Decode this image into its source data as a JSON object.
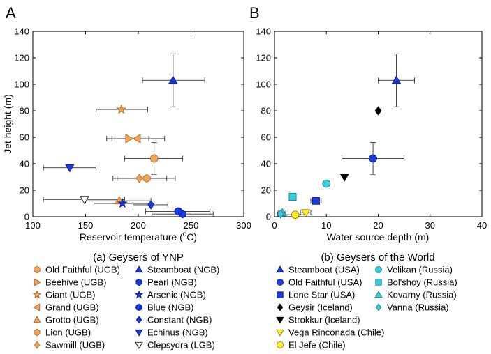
{
  "colors": {
    "ugb": "#f2a55a",
    "ugb_stroke": "#a86420",
    "ngb": "#1a3ae0",
    "ngb_stroke": "#0a1a80",
    "lgb": "#ffffff",
    "iceland": "#000000",
    "chile": "#ffee22",
    "chile_stroke": "#8a7a00",
    "russia": "#33cfe0",
    "russia_stroke": "#1a7a88"
  },
  "chart_data": [
    {
      "type": "scatter",
      "panel": "A",
      "caption": "(a) Geysers of YNP",
      "xlabel": "Reservoir temperature (",
      "xlabel_sup": "o",
      "xlabel_end": "C)",
      "ylabel": "Jet height (m)",
      "xlim": [
        100,
        300
      ],
      "ylim": [
        0,
        140
      ],
      "xticks": [
        "100",
        "150",
        "200",
        "250",
        "300"
      ],
      "yticks": [
        "0",
        "20",
        "40",
        "60",
        "80",
        "100",
        "120",
        "140"
      ],
      "xtick_values": [
        100,
        150,
        200,
        250,
        300
      ],
      "ytick_values": [
        0,
        20,
        40,
        60,
        80,
        100,
        120,
        140
      ],
      "points": [
        {
          "name": "Old Faithful (UGB)",
          "x": 215,
          "y": 44,
          "marker": "circle",
          "group": "ugb",
          "xerr": [
            187,
            242
          ],
          "yerr": [
            32,
            56
          ]
        },
        {
          "name": "Beehive (UGB)",
          "x": 191,
          "y": 59,
          "marker": "triangle-right",
          "group": "ugb",
          "xerr": [
            170,
            210
          ],
          "yerr": null
        },
        {
          "name": "Giant (UGB)",
          "x": 184,
          "y": 81,
          "marker": "star",
          "group": "ugb",
          "xerr": [
            160,
            209
          ],
          "yerr": null
        },
        {
          "name": "Grand (UGB)",
          "x": 199,
          "y": 59,
          "marker": "triangle-left",
          "group": "ugb",
          "xerr": [
            175,
            225
          ],
          "yerr": null
        },
        {
          "name": "Grotto (UGB)",
          "x": 182,
          "y": 12,
          "marker": "triangle-up",
          "group": "ugb",
          "xerr": [
            150,
            212
          ],
          "yerr": null
        },
        {
          "name": "Lion (UGB)",
          "x": 208,
          "y": 29,
          "marker": "hexagon",
          "group": "ugb",
          "xerr": [
            180,
            235
          ],
          "yerr": null
        },
        {
          "name": "Sawmill (UGB)",
          "x": 201,
          "y": 29,
          "marker": "diamond",
          "group": "ugb",
          "xerr": [
            176,
            227
          ],
          "yerr": null
        },
        {
          "name": "Steamboat (NGB)",
          "x": 233,
          "y": 103,
          "marker": "triangle-up",
          "group": "ngb",
          "xerr": [
            204,
            263
          ],
          "yerr": [
            83,
            123
          ]
        },
        {
          "name": "Pearl (NGB)",
          "x": 242,
          "y": 2,
          "marker": "hexagon",
          "group": "ngb",
          "xerr": [
            213,
            271
          ],
          "yerr": null
        },
        {
          "name": "Arsenic (NGB)",
          "x": 185,
          "y": 10,
          "marker": "star",
          "group": "ngb",
          "xerr": [
            158,
            212
          ],
          "yerr": null
        },
        {
          "name": "Blue (NGB)",
          "x": 238,
          "y": 4,
          "marker": "circle",
          "group": "ngb",
          "xerr": [
            207,
            268
          ],
          "yerr": null
        },
        {
          "name": "Constant (NGB)",
          "x": 212,
          "y": 9,
          "marker": "diamond",
          "group": "ngb",
          "xerr": [
            195,
            228
          ],
          "yerr": null
        },
        {
          "name": "Echinus (NGB)",
          "x": 135,
          "y": 37,
          "marker": "triangle-down",
          "group": "ngb",
          "xerr": [
            110,
            160
          ],
          "yerr": null
        },
        {
          "name": "Clepsydra (LGB)",
          "x": 149,
          "y": 13,
          "marker": "triangle-down-open",
          "group": "lgb",
          "xerr": [
            110,
            187
          ],
          "yerr": null
        }
      ],
      "legend": {
        "col1": [
          {
            "label": "Old Faithful (UGB)",
            "marker": "circle",
            "group": "ugb"
          },
          {
            "label": "Beehive (UGB)",
            "marker": "triangle-right",
            "group": "ugb"
          },
          {
            "label": "Giant (UGB)",
            "marker": "star",
            "group": "ugb"
          },
          {
            "label": "Grand (UGB)",
            "marker": "triangle-left",
            "group": "ugb"
          },
          {
            "label": "Grotto (UGB)",
            "marker": "triangle-up",
            "group": "ugb"
          },
          {
            "label": "Lion (UGB)",
            "marker": "hexagon",
            "group": "ugb"
          },
          {
            "label": "Sawmill (UGB)",
            "marker": "diamond",
            "group": "ugb"
          }
        ],
        "col2": [
          {
            "label": "Steamboat (NGB)",
            "marker": "triangle-up",
            "group": "ngb"
          },
          {
            "label": "Pearl (NGB)",
            "marker": "hexagon",
            "group": "ngb"
          },
          {
            "label": "Arsenic (NGB)",
            "marker": "star",
            "group": "ngb"
          },
          {
            "label": "Blue (NGB)",
            "marker": "circle",
            "group": "ngb"
          },
          {
            "label": "Constant (NGB)",
            "marker": "diamond",
            "group": "ngb"
          },
          {
            "label": "Echinus (NGB)",
            "marker": "triangle-down",
            "group": "ngb"
          },
          {
            "label": "Clepsydra (LGB)",
            "marker": "triangle-down-open",
            "group": "lgb"
          }
        ]
      }
    },
    {
      "type": "scatter",
      "panel": "B",
      "caption": "(b) Geysers of the World",
      "xlabel": "Water source depth (m)",
      "ylabel": "",
      "xlim": [
        0,
        40
      ],
      "ylim": [
        0,
        140
      ],
      "xticks": [
        "0",
        "10",
        "20",
        "30",
        "40"
      ],
      "yticks": [
        "0",
        "20",
        "40",
        "60",
        "80",
        "100",
        "120",
        "140"
      ],
      "xtick_values": [
        0,
        10,
        20,
        30,
        40
      ],
      "ytick_values": [
        0,
        20,
        40,
        60,
        80,
        100,
        120,
        140
      ],
      "points": [
        {
          "name": "Steamboat (USA)",
          "x": 23.5,
          "y": 103,
          "marker": "triangle-up",
          "group": "ngb",
          "xerr": [
            20,
            27
          ],
          "yerr": [
            83,
            123
          ]
        },
        {
          "name": "Old Faithful (USA)",
          "x": 19,
          "y": 44,
          "marker": "circle",
          "group": "ngb",
          "xerr": [
            13,
            25
          ],
          "yerr": [
            32,
            56
          ]
        },
        {
          "name": "Lone Star (USA)",
          "x": 8,
          "y": 12,
          "marker": "square",
          "group": "ngb",
          "xerr": [
            7,
            9
          ],
          "yerr": null
        },
        {
          "name": "Geysir (Iceland)",
          "x": 20,
          "y": 80,
          "marker": "diamond",
          "group": "iceland",
          "xerr": null,
          "yerr": null
        },
        {
          "name": "Strokkur (Iceland)",
          "x": 13.5,
          "y": 30,
          "marker": "triangle-down",
          "group": "iceland",
          "xerr": null,
          "yerr": null
        },
        {
          "name": "Vega Rinconada (Chile)",
          "x": 6,
          "y": 3,
          "marker": "triangle-down",
          "group": "chile",
          "xerr": [
            5,
            7
          ],
          "yerr": null
        },
        {
          "name": "El Jefe (Chile)",
          "x": 4,
          "y": 1.5,
          "marker": "circle",
          "group": "chile",
          "xerr": [
            2,
            6
          ],
          "yerr": null
        },
        {
          "name": "Velikan (Russia)",
          "x": 10,
          "y": 25,
          "marker": "circle",
          "group": "russia",
          "xerr": null,
          "yerr": null
        },
        {
          "name": "Bol'shoy (Russia)",
          "x": 3.5,
          "y": 15,
          "marker": "square",
          "group": "russia",
          "xerr": null,
          "yerr": null
        },
        {
          "name": "Kovarny (Russia)",
          "x": 1.5,
          "y": 3,
          "marker": "triangle-up",
          "group": "russia",
          "xerr": [
            0.8,
            2.2
          ],
          "yerr": null
        },
        {
          "name": "Vanna (Russia)",
          "x": 1.2,
          "y": 2,
          "marker": "diamond",
          "group": "russia",
          "xerr": [
            0.6,
            2
          ],
          "yerr": null
        }
      ],
      "legend": {
        "col1": [
          {
            "label": "Steamboat (USA)",
            "marker": "triangle-up",
            "group": "ngb"
          },
          {
            "label": "Old Faithful (USA)",
            "marker": "circle",
            "group": "ngb"
          },
          {
            "label": "Lone Star (USA)",
            "marker": "square",
            "group": "ngb"
          },
          {
            "label": "Geysir (Iceland)",
            "marker": "diamond",
            "group": "iceland"
          },
          {
            "label": "Strokkur (Iceland)",
            "marker": "triangle-down",
            "group": "iceland"
          },
          {
            "label": "Vega Rinconada (Chile)",
            "marker": "triangle-down",
            "group": "chile"
          },
          {
            "label": "El Jefe (Chile)",
            "marker": "circle",
            "group": "chile"
          }
        ],
        "col2": [
          {
            "label": "Velikan (Russia)",
            "marker": "circle",
            "group": "russia"
          },
          {
            "label": "Bol'shoy (Russia)",
            "marker": "square",
            "group": "russia"
          },
          {
            "label": "Kovarny (Russia)",
            "marker": "triangle-up",
            "group": "russia"
          },
          {
            "label": "Vanna (Russia)",
            "marker": "diamond",
            "group": "russia"
          }
        ]
      }
    }
  ]
}
